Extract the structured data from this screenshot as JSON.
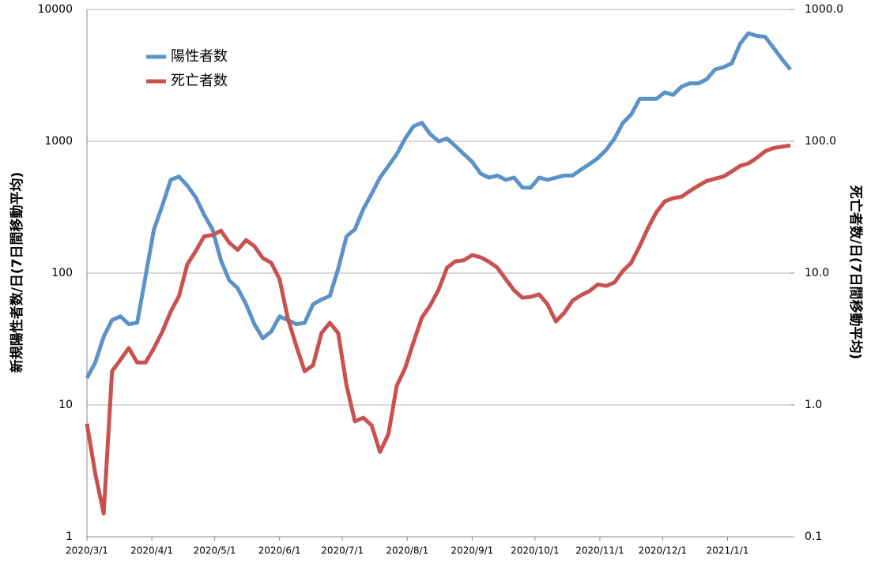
{
  "chart_data": {
    "type": "line",
    "y_label": "新規陽性者数/日(7日間移動平均)",
    "y2_label": "死亡者数/日(7日間移動平均)",
    "x": [
      "2020/3/1",
      "2020/3/5",
      "2020/3/9",
      "2020/3/13",
      "2020/3/17",
      "2020/3/21",
      "2020/3/25",
      "2020/3/29",
      "2020/4/2",
      "2020/4/6",
      "2020/4/10",
      "2020/4/14",
      "2020/4/18",
      "2020/4/22",
      "2020/4/26",
      "2020/4/30",
      "2020/5/4",
      "2020/5/8",
      "2020/5/12",
      "2020/5/16",
      "2020/5/20",
      "2020/5/24",
      "2020/5/28",
      "2020/6/1",
      "2020/6/5",
      "2020/6/9",
      "2020/6/13",
      "2020/6/17",
      "2020/6/21",
      "2020/6/25",
      "2020/6/29",
      "2020/7/3",
      "2020/7/7",
      "2020/7/11",
      "2020/7/15",
      "2020/7/19",
      "2020/7/23",
      "2020/7/27",
      "2020/7/31",
      "2020/8/4",
      "2020/8/8",
      "2020/8/12",
      "2020/8/16",
      "2020/8/20",
      "2020/8/24",
      "2020/8/28",
      "2020/9/1",
      "2020/9/5",
      "2020/9/9",
      "2020/9/13",
      "2020/9/17",
      "2020/9/21",
      "2020/9/25",
      "2020/9/29",
      "2020/10/3",
      "2020/10/7",
      "2020/10/11",
      "2020/10/15",
      "2020/10/19",
      "2020/10/23",
      "2020/10/27",
      "2020/10/31",
      "2020/11/4",
      "2020/11/8",
      "2020/11/12",
      "2020/11/16",
      "2020/11/20",
      "2020/11/24",
      "2020/11/28",
      "2020/12/2",
      "2020/12/6",
      "2020/12/10",
      "2020/12/14",
      "2020/12/18",
      "2020/12/22",
      "2020/12/26",
      "2020/12/30",
      "2021/1/3",
      "2021/1/7",
      "2021/1/11",
      "2021/1/15",
      "2021/1/19",
      "2021/1/23",
      "2021/1/27",
      "2021/1/31"
    ],
    "series": [
      {
        "name": "陽性者数",
        "color": "#5b93c9",
        "values": [
          16,
          21,
          33,
          44,
          47,
          41,
          42,
          95,
          215,
          325,
          510,
          540,
          460,
          375,
          277,
          215,
          125,
          88,
          77,
          58,
          41,
          32,
          36,
          47,
          44,
          41,
          42,
          58,
          63,
          67,
          108,
          190,
          215,
          305,
          400,
          530,
          650,
          800,
          1050,
          1300,
          1380,
          1130,
          1000,
          1050,
          920,
          800,
          700,
          570,
          530,
          550,
          510,
          530,
          445,
          445,
          530,
          510,
          530,
          550,
          550,
          610,
          670,
          745,
          860,
          1050,
          1380,
          1600,
          2100,
          2100,
          2100,
          2350,
          2250,
          2600,
          2750,
          2750,
          2950,
          3500,
          3650,
          3900,
          5500,
          6600,
          6300,
          6200,
          5100,
          4200,
          3500
        ]
      },
      {
        "name": "死亡者数",
        "color": "#c9514f",
        "axis": "y2",
        "values": [
          0.72,
          0.3,
          0.15,
          1.8,
          2.2,
          2.7,
          2.1,
          2.1,
          2.7,
          3.6,
          5.1,
          6.7,
          11.7,
          14.7,
          19,
          19.4,
          21,
          17,
          15,
          17.8,
          16,
          13,
          12,
          9,
          4.5,
          2.8,
          1.8,
          2.0,
          3.5,
          4.2,
          3.5,
          1.4,
          0.75,
          0.8,
          0.7,
          0.44,
          0.6,
          1.4,
          1.9,
          3.0,
          4.6,
          5.7,
          7.5,
          11,
          12.3,
          12.5,
          13.7,
          13.2,
          12.2,
          11,
          9,
          7.4,
          6.5,
          6.6,
          6.9,
          5.8,
          4.3,
          5,
          6.2,
          6.8,
          7.3,
          8.2,
          8,
          8.5,
          10.4,
          12,
          16,
          22,
          29,
          35,
          37,
          38,
          42,
          46,
          50,
          52,
          54,
          59,
          65,
          68,
          75,
          84,
          89,
          91,
          93
        ]
      }
    ],
    "xlim": [
      "2020/3/1",
      "2021/1/31"
    ],
    "xticks": [
      "2020/3/1",
      "2020/4/1",
      "2020/5/1",
      "2020/6/1",
      "2020/7/1",
      "2020/8/1",
      "2020/9/1",
      "2020/10/1",
      "2020/11/1",
      "2020/12/1",
      "2021/1/1"
    ],
    "ylim": [
      1,
      10000
    ],
    "yticks": [
      1,
      10,
      100,
      1000,
      10000
    ],
    "yscale": "log",
    "y2lim": [
      0.1,
      1000
    ],
    "y2ticks": [
      0.1,
      {
        "value": 1,
        "label": "1.0"
      },
      {
        "value": 10,
        "label": "10.0"
      },
      {
        "value": 100,
        "label": "100.0"
      },
      {
        "value": 1000,
        "label": "1000.0"
      }
    ],
    "y2scale": "log",
    "grid": true,
    "legend": "upper left"
  }
}
